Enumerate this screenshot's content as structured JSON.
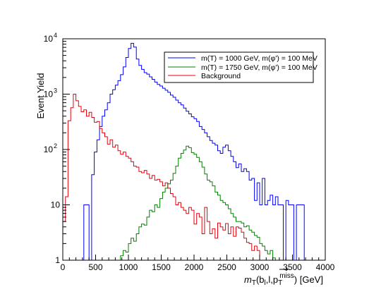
{
  "chart_data": {
    "type": "line",
    "step": true,
    "xlabel": "m_T(b_l,l,p_T^miss) [GeV]",
    "xlabel_parts": {
      "m": "m",
      "T": "T",
      "args_open": "(b",
      "l_sub": "l",
      "mid": ",l,",
      "p": "p",
      "T2": "T",
      "miss": "miss",
      "close": ") [GeV]"
    },
    "ylabel": "Event Yield",
    "xlim": [
      0,
      4000
    ],
    "ylim": [
      1,
      10000
    ],
    "ylog": true,
    "x_ticks": [
      "0",
      "500",
      "1000",
      "1500",
      "2000",
      "2500",
      "3000",
      "3500",
      "4000"
    ],
    "y_ticks": [
      {
        "value": 1,
        "label": "1"
      },
      {
        "value": 10,
        "label": "10"
      },
      {
        "value": 100,
        "base": "10",
        "exp": "2"
      },
      {
        "value": 1000,
        "base": "10",
        "exp": "3"
      },
      {
        "value": 10000,
        "base": "10",
        "exp": "4"
      }
    ],
    "legend_position": "top-right",
    "legend_texts": [
      "m(T) = 1000 GeV,  m(φ') = 100 MeV",
      "m(T) = 1750 GeV,  m(φ') = 100 MeV",
      "Background"
    ],
    "series": [
      {
        "name": "m(T) = 1000 GeV,  m(φ') = 100 MeV",
        "color": "#0000ff",
        "edges": [
          0,
          40,
          80,
          120,
          160,
          200,
          240,
          280,
          320,
          360,
          400,
          440,
          480,
          520,
          560,
          600,
          640,
          680,
          720,
          760,
          800,
          840,
          880,
          920,
          960,
          1000,
          1040,
          1080,
          1120,
          1160,
          1200,
          1240,
          1280,
          1320,
          1360,
          1400,
          1440,
          1480,
          1520,
          1560,
          1600,
          1640,
          1680,
          1720,
          1760,
          1800,
          1840,
          1880,
          1920,
          1960,
          2000,
          2040,
          2080,
          2120,
          2160,
          2200,
          2240,
          2280,
          2320,
          2360,
          2400,
          2440,
          2480,
          2520,
          2560,
          2600,
          2640,
          2680,
          2720,
          2760,
          2800,
          2840,
          2880,
          2920,
          2960,
          3000,
          3040,
          3080,
          3120,
          3160,
          3200,
          3240,
          3280,
          3320,
          3360,
          3400,
          3440,
          3480,
          3520,
          3560,
          3600,
          3640,
          3680,
          3720,
          3760,
          3800,
          3840,
          3880,
          3920,
          3960,
          4000
        ],
        "values": [
          0,
          0,
          0,
          0,
          0,
          0,
          0,
          0,
          10,
          10,
          0,
          35,
          90,
          150,
          260,
          400,
          520,
          700,
          1000,
          1200,
          1450,
          1750,
          2250,
          3100,
          4600,
          6700,
          8300,
          7100,
          4300,
          3300,
          2800,
          2450,
          2300,
          2050,
          1850,
          1650,
          1500,
          1400,
          1280,
          1180,
          1080,
          960,
          880,
          780,
          700,
          640,
          560,
          490,
          440,
          390,
          360,
          320,
          260,
          230,
          200,
          170,
          145,
          130,
          120,
          95,
          85,
          110,
          120,
          95,
          75,
          60,
          47,
          55,
          40,
          45,
          40,
          28,
          30,
          12,
          25,
          10,
          30,
          10,
          12,
          15,
          10,
          14,
          10,
          10,
          0,
          12,
          10,
          10,
          0,
          10,
          10,
          10,
          0,
          0,
          0,
          0,
          0,
          0,
          0,
          0
        ]
      },
      {
        "name": "m(T) = 1750 GeV,  m(φ') = 100 MeV",
        "color": "#008000",
        "edges": [
          0,
          40,
          80,
          120,
          160,
          200,
          240,
          280,
          320,
          360,
          400,
          440,
          480,
          520,
          560,
          600,
          640,
          680,
          720,
          760,
          800,
          840,
          880,
          920,
          960,
          1000,
          1040,
          1080,
          1120,
          1160,
          1200,
          1240,
          1280,
          1320,
          1360,
          1400,
          1440,
          1480,
          1520,
          1560,
          1600,
          1640,
          1680,
          1720,
          1760,
          1800,
          1840,
          1880,
          1920,
          1960,
          2000,
          2040,
          2080,
          2120,
          2160,
          2200,
          2240,
          2280,
          2320,
          2360,
          2400,
          2440,
          2480,
          2520,
          2560,
          2600,
          2640,
          2680,
          2720,
          2760,
          2800,
          2840,
          2880,
          2920,
          2960,
          3000,
          3040,
          3080,
          3120,
          3160,
          3200,
          3240,
          3280,
          3320,
          3360,
          3400,
          3440,
          3480,
          3520,
          3560,
          3600,
          3640,
          3680,
          3720,
          3760,
          3800,
          3840,
          3880,
          3920,
          3960,
          4000
        ],
        "values": [
          0,
          0,
          0,
          0,
          0,
          0,
          0,
          0,
          0,
          0,
          0,
          0,
          0,
          0,
          0,
          0,
          0,
          0,
          0,
          0,
          0,
          0,
          1.2,
          1.5,
          1.4,
          2,
          2.5,
          2.2,
          3,
          4,
          4.5,
          4.3,
          6,
          8,
          7.5,
          10,
          9,
          13,
          17,
          20,
          24,
          28,
          37,
          50,
          70,
          85,
          98,
          115,
          108,
          88,
          82,
          72,
          60,
          48,
          36,
          28,
          26,
          22,
          17,
          15,
          12,
          11,
          10,
          8.5,
          7,
          6,
          5,
          5,
          4.7,
          4,
          4.2,
          3.5,
          3.2,
          2.8,
          2.6,
          2,
          1.8,
          1.5,
          1.3,
          1.5,
          1.1,
          0,
          0,
          0,
          0,
          0,
          0,
          0,
          0,
          0,
          0,
          0,
          0,
          0,
          0,
          0,
          0,
          0,
          0,
          0
        ]
      },
      {
        "name": "Background",
        "color": "#e8000b",
        "edges": [
          0,
          40,
          80,
          120,
          160,
          200,
          240,
          280,
          320,
          360,
          400,
          440,
          480,
          520,
          560,
          600,
          640,
          680,
          720,
          760,
          800,
          840,
          880,
          920,
          960,
          1000,
          1040,
          1080,
          1120,
          1160,
          1200,
          1240,
          1280,
          1320,
          1360,
          1400,
          1440,
          1480,
          1520,
          1560,
          1600,
          1640,
          1680,
          1720,
          1760,
          1800,
          1840,
          1880,
          1920,
          1960,
          2000,
          2040,
          2080,
          2120,
          2160,
          2200,
          2240,
          2280,
          2320,
          2360,
          2400,
          2440,
          2480,
          2520,
          2560,
          2600,
          2640,
          2680,
          2720,
          2760,
          2800,
          2840,
          2880,
          2920,
          2960,
          3000,
          3040,
          3080,
          3120,
          3160,
          3200,
          3240,
          3280,
          3320,
          3360,
          3400,
          3440,
          3480,
          3520,
          3560,
          3600,
          3640,
          3680,
          3720,
          3760,
          3800,
          3840,
          3880,
          3920,
          3960,
          4000
        ],
        "values": [
          5,
          14,
          330,
          570,
          1000,
          760,
          600,
          480,
          520,
          400,
          470,
          380,
          310,
          320,
          240,
          200,
          170,
          125,
          150,
          110,
          120,
          95,
          82,
          90,
          75,
          70,
          60,
          50,
          48,
          40,
          38,
          42,
          36,
          30,
          34,
          28,
          29,
          26,
          22,
          25,
          20,
          16,
          14,
          10,
          11,
          9,
          8,
          7,
          9,
          8,
          4.5,
          7,
          6,
          3,
          9,
          5,
          3,
          3.7,
          2.5,
          4.7,
          4,
          3.5,
          4.6,
          3,
          4,
          2.7,
          4,
          3.8,
          3.2,
          2.5,
          2.1,
          2,
          1.5,
          1.8,
          1.5,
          1,
          0,
          0,
          0,
          0,
          0,
          0,
          0,
          0,
          0,
          0,
          0,
          0,
          0,
          0,
          0,
          0,
          0,
          0,
          0,
          0,
          0,
          0,
          0,
          0
        ]
      }
    ]
  }
}
